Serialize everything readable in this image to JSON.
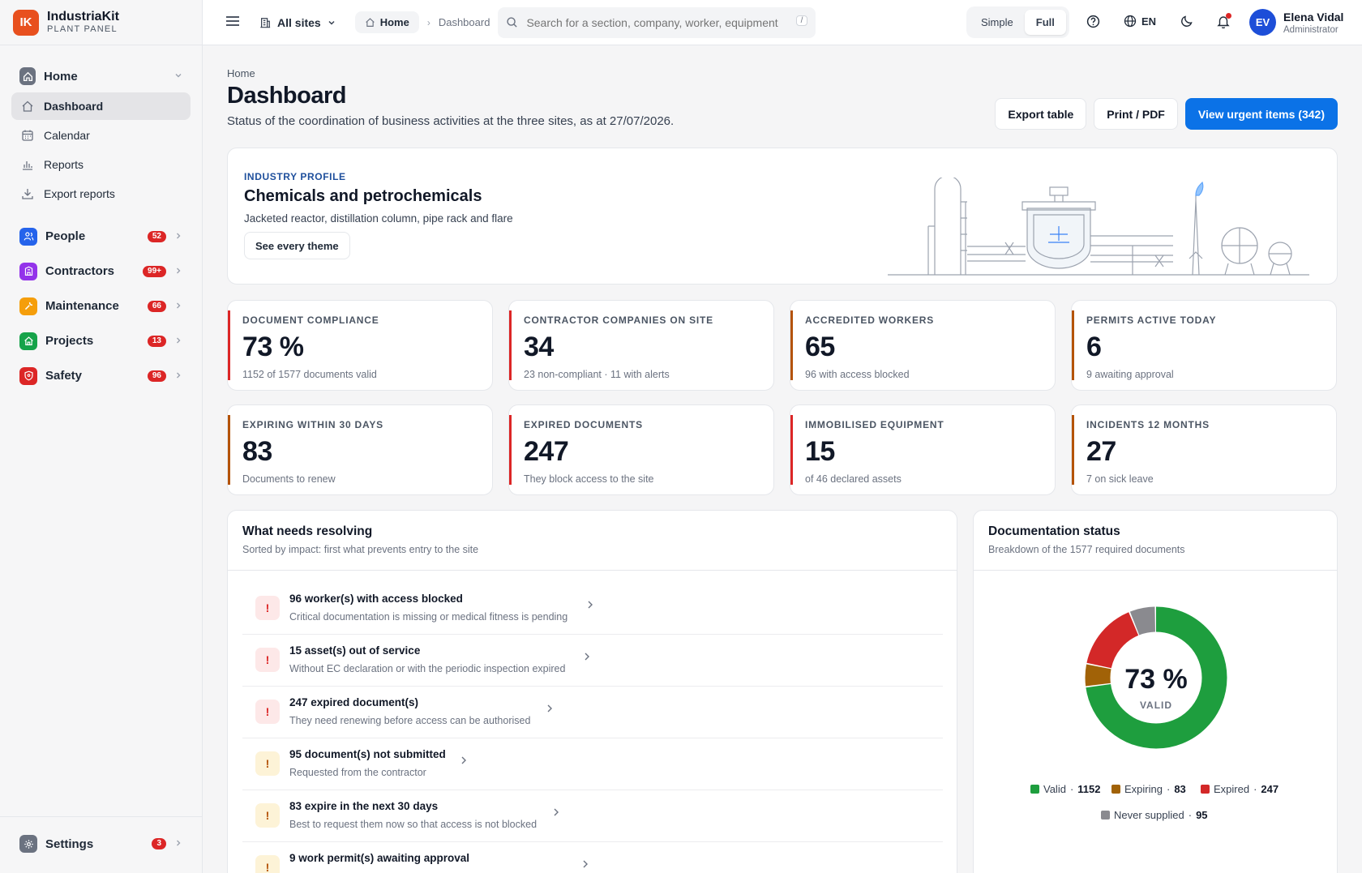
{
  "brand": {
    "logo": "IK",
    "name": "IndustriaKit",
    "sub": "PLANT PANEL"
  },
  "sidebar": {
    "home": {
      "label": "Home",
      "icon": "home-icon"
    },
    "sub_items": [
      {
        "label": "Dashboard",
        "icon": "home-outline-icon",
        "active": true
      },
      {
        "label": "Calendar",
        "icon": "calendar-icon"
      },
      {
        "label": "Reports",
        "icon": "bar-chart-icon"
      },
      {
        "label": "Export reports",
        "icon": "download-icon"
      }
    ],
    "groups": [
      {
        "label": "People",
        "badge": "52",
        "color": "#2563eb",
        "icon": "people-icon"
      },
      {
        "label": "Contractors",
        "badge": "99+",
        "color": "#9333ea",
        "icon": "building-icon"
      },
      {
        "label": "Maintenance",
        "badge": "66",
        "color": "#f59e0b",
        "icon": "wrench-icon"
      },
      {
        "label": "Projects",
        "badge": "13",
        "color": "#16a34a",
        "icon": "house-icon"
      },
      {
        "label": "Safety",
        "badge": "96",
        "color": "#dc2626",
        "icon": "shield-icon"
      }
    ],
    "settings": {
      "label": "Settings",
      "badge": "3",
      "icon": "gear-icon"
    }
  },
  "topbar": {
    "sites": "All sites",
    "crumb_home": "Home",
    "crumb_current": "Dashboard",
    "search_placeholder": "Search for a section, company, worker, equipment",
    "search_kbd": "/",
    "mode_simple": "Simple",
    "mode_full": "Full",
    "lang": "EN",
    "user_initials": "EV",
    "user_name": "Elena Vidal",
    "user_role": "Administrator"
  },
  "page": {
    "crumb": "Home",
    "title": "Dashboard",
    "subtitle": "Status of the coordination of business activities at the three sites, as at 27/07/2026.",
    "export_label": "Export table",
    "print_label": "Print / PDF",
    "urgent_label": "View urgent items (342)"
  },
  "profile": {
    "label": "INDUSTRY PROFILE",
    "title": "Chemicals and petrochemicals",
    "sub": "Jacketed reactor, distillation column, pipe rack and flare",
    "button": "See every theme"
  },
  "kpis": [
    {
      "label": "DOCUMENT COMPLIANCE",
      "value": "73 %",
      "note": "1152 of 1577 documents valid",
      "accent": "#dc2626"
    },
    {
      "label": "CONTRACTOR COMPANIES ON SITE",
      "value": "34",
      "note": "23 non-compliant · 11 with alerts",
      "accent": "#dc2626"
    },
    {
      "label": "ACCREDITED WORKERS",
      "value": "65",
      "note": "96 with access blocked",
      "accent": "#b45309"
    },
    {
      "label": "PERMITS ACTIVE TODAY",
      "value": "6",
      "note": "9 awaiting approval",
      "accent": "#b45309"
    },
    {
      "label": "EXPIRING WITHIN 30 DAYS",
      "value": "83",
      "note": "Documents to renew",
      "accent": "#b45309"
    },
    {
      "label": "EXPIRED DOCUMENTS",
      "value": "247",
      "note": "They block access to the site",
      "accent": "#dc2626"
    },
    {
      "label": "IMMOBILISED EQUIPMENT",
      "value": "15",
      "note": "of 46 declared assets",
      "accent": "#dc2626"
    },
    {
      "label": "INCIDENTS 12 MONTHS",
      "value": "27",
      "note": "7 on sick leave",
      "accent": "#b45309"
    }
  ],
  "resolve": {
    "title": "What needs resolving",
    "sub": "Sorted by impact: first what prevents entry to the site",
    "items": [
      {
        "title": "96 worker(s) with access blocked",
        "desc": "Critical documentation is missing or medical fitness is pending",
        "level": "red"
      },
      {
        "title": "15 asset(s) out of service",
        "desc": "Without EC declaration or with the periodic inspection expired",
        "level": "red"
      },
      {
        "title": "247 expired document(s)",
        "desc": "They need renewing before access can be authorised",
        "level": "red"
      },
      {
        "title": "95 document(s) not submitted",
        "desc": "Requested from the contractor",
        "level": "amber"
      },
      {
        "title": "83 expire in the next 30 days",
        "desc": "Best to request them now so that access is not blocked",
        "level": "amber"
      },
      {
        "title": "9 work permit(s) awaiting approval",
        "desc": "",
        "level": "amber"
      }
    ]
  },
  "docstatus": {
    "title": "Documentation status",
    "sub": "Breakdown of the 1577 required documents",
    "center_value": "73 %",
    "center_label": "VALID"
  },
  "chart_data": {
    "type": "pie",
    "categories": [
      "Valid",
      "Expiring",
      "Expired",
      "Never supplied"
    ],
    "values": [
      1152,
      83,
      247,
      95
    ],
    "colors": [
      "#1e9e3e",
      "#a16207",
      "#d32828",
      "#8a8a8f"
    ],
    "legend": "bottom"
  }
}
